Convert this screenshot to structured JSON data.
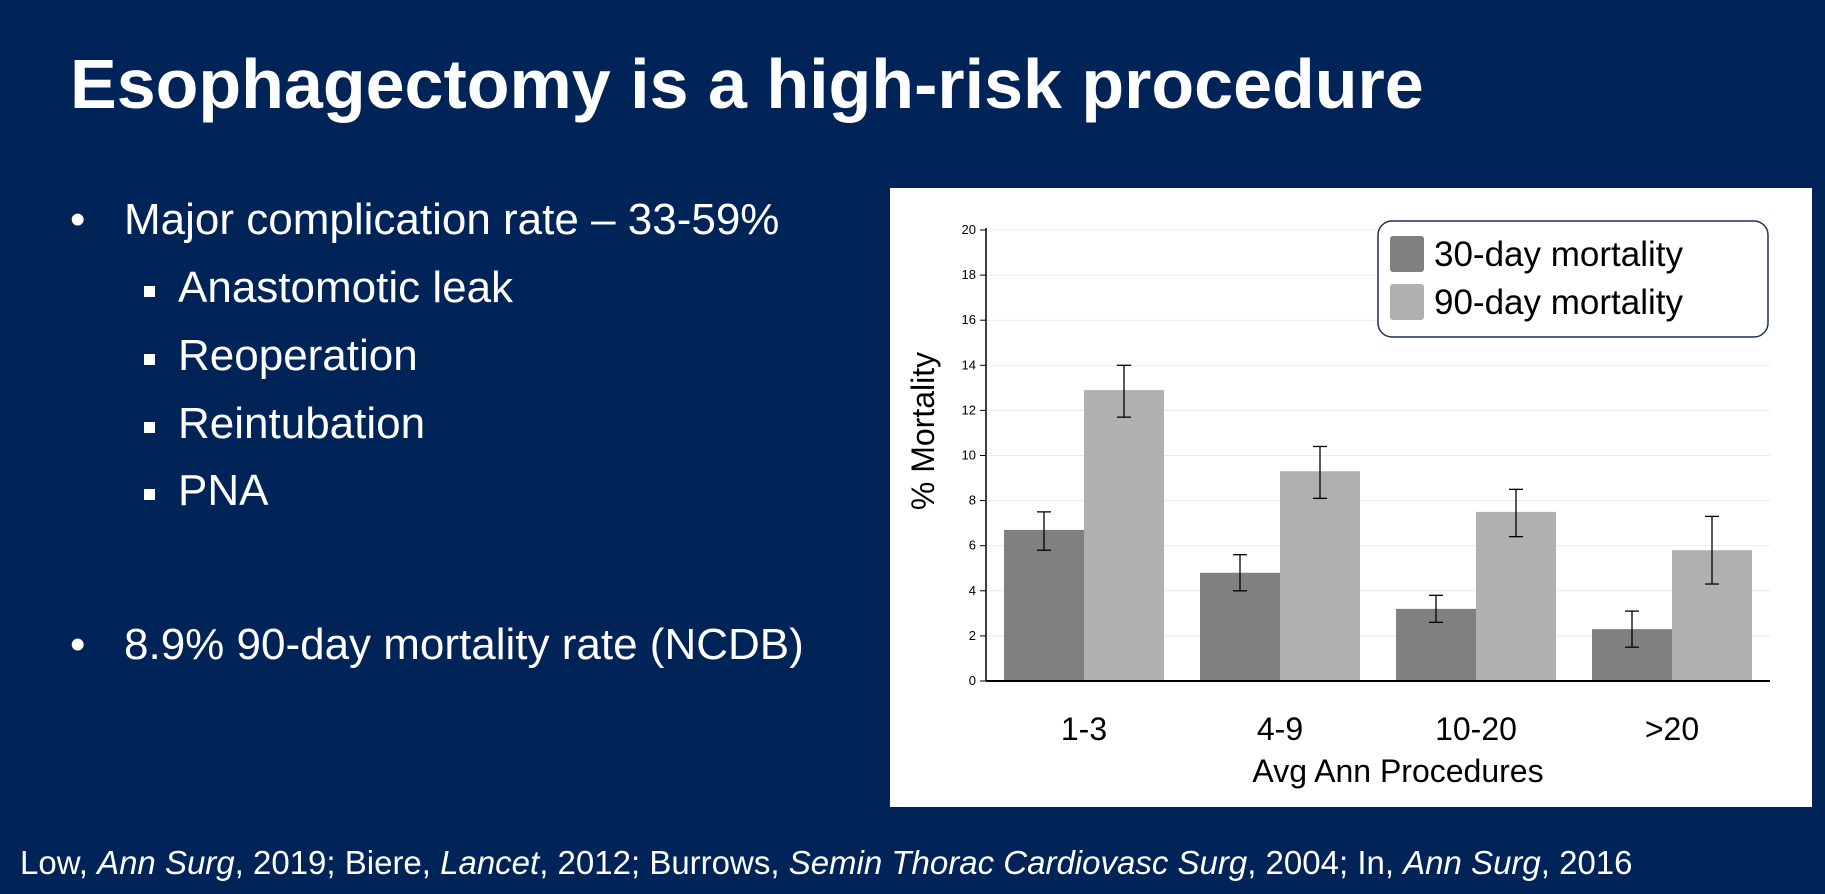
{
  "slide": {
    "title": "Esophagectomy is a high-risk procedure",
    "bullets": [
      {
        "text": "Major complication rate – 33-59%",
        "sub": [
          "Anastomotic leak",
          "Reoperation",
          "Reintubation",
          "PNA"
        ]
      },
      {
        "text": "8.9% 90-day mortality rate (NCDB)",
        "sub": []
      }
    ],
    "citation": [
      {
        "author": "Low, ",
        "journal": "Ann Surg",
        "year": ", 2019; "
      },
      {
        "author": "Biere, ",
        "journal": "Lancet",
        "year": ", 2012; "
      },
      {
        "author": "Burrows, ",
        "journal": "Semin Thorac Cardiovasc Surg",
        "year": ", 2004; "
      },
      {
        "author": "In, ",
        "journal": "Ann Surg",
        "year": ", 2016"
      }
    ]
  },
  "chart_data": {
    "type": "bar",
    "categories": [
      "1-3",
      "4-9",
      "10-20",
      ">20"
    ],
    "series": [
      {
        "name": "30-day mortality",
        "color": "#808080",
        "values": [
          6.7,
          4.8,
          3.2,
          2.3
        ],
        "err_low": [
          5.8,
          4.0,
          2.6,
          1.5
        ],
        "err_high": [
          7.5,
          5.6,
          3.8,
          3.1
        ]
      },
      {
        "name": "90-day mortality",
        "color": "#b0b0b0",
        "values": [
          12.9,
          9.3,
          7.5,
          5.8
        ],
        "err_low": [
          11.7,
          8.1,
          6.4,
          4.3
        ],
        "err_high": [
          14.0,
          10.4,
          8.5,
          7.3
        ]
      }
    ],
    "xlabel": "Avg Ann Procedures",
    "ylabel": "% Mortality",
    "ylim": [
      0,
      20
    ],
    "yticks": [
      0,
      2,
      4,
      6,
      8,
      10,
      12,
      14,
      16,
      18,
      20
    ],
    "grid": true,
    "legend": "top-right"
  }
}
